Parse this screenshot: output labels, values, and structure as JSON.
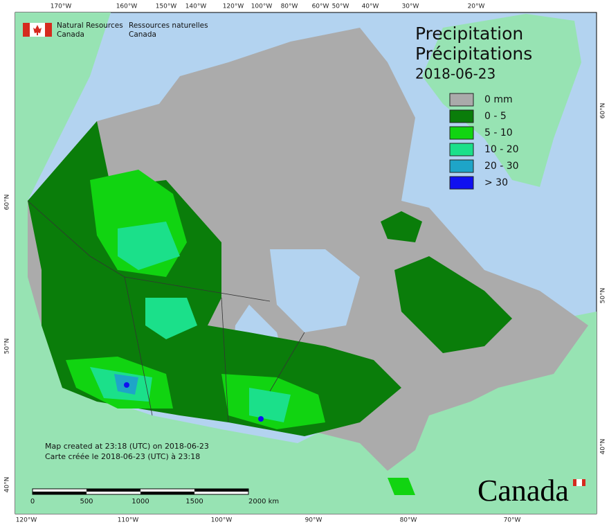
{
  "header": {
    "org_en": [
      "Natural Resources",
      "Canada"
    ],
    "org_fr": [
      "Ressources naturelles",
      "Canada"
    ]
  },
  "title": [
    "Precipitation",
    "Précipitations"
  ],
  "date": "2018-06-23",
  "legend": [
    {
      "label": "0 mm",
      "color": "#aaaaaa"
    },
    {
      "label": "0 - 5",
      "color": "#0a7d0a"
    },
    {
      "label": "5 - 10",
      "color": "#11d411"
    },
    {
      "label": "10 - 20",
      "color": "#1be08a"
    },
    {
      "label": "20 - 30",
      "color": "#1ea5c8"
    },
    {
      "label": "> 30",
      "color": "#1010f0"
    }
  ],
  "graticule": {
    "top": [
      "170°W",
      "160°W",
      "150°W",
      "140°W",
      "120°W",
      "100°W",
      "80°W",
      "60°W",
      "50°W",
      "40°W",
      "30°W",
      "20°W"
    ],
    "bottom": [
      "120°W",
      "110°W",
      "100°W",
      "90°W",
      "80°W",
      "70°W"
    ],
    "left": [
      "60°N",
      "50°N",
      "40°N"
    ],
    "right": [
      "60°N",
      "50°N",
      "40°N"
    ]
  },
  "notes": [
    "Map created at 23:18 (UTC) on 2018-06-23",
    "Carte créée le 2018-06-23 (UTC) à 23:18"
  ],
  "scale_bar": [
    "0",
    "500",
    "1000",
    "1500",
    "2000 km"
  ],
  "wordmark": "Canada"
}
